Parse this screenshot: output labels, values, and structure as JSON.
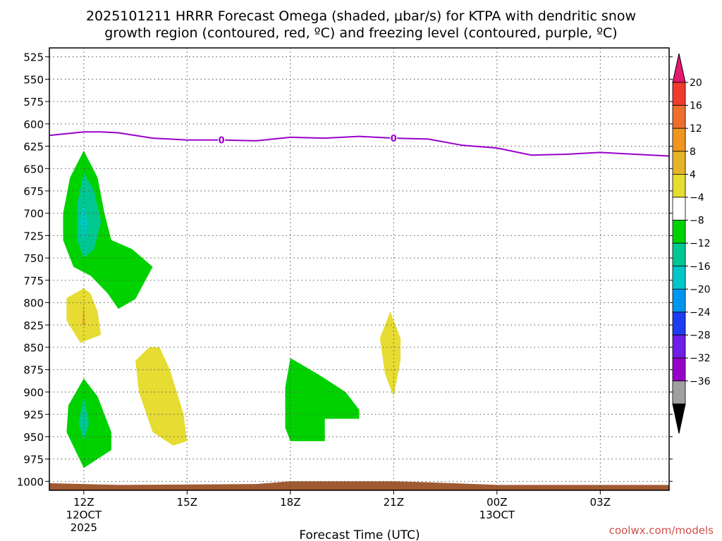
{
  "chart_data": {
    "type": "time-height cross-section",
    "title_line1": "2025101211 HRRR Forecast Omega (shaded, μbar/s) for KTPA with dendritic snow",
    "title_line2": "growth region (contoured, red, ºC) and freezing level (contoured, purple, ºC)",
    "xlabel": "Forecast Time (UTC)",
    "credit": "coolwx.com/models",
    "x_range_hours": [
      -1,
      17
    ],
    "y_range_hpa": [
      515,
      1010
    ],
    "y_ticks": [
      525,
      550,
      575,
      600,
      625,
      650,
      675,
      700,
      725,
      750,
      775,
      800,
      825,
      850,
      875,
      900,
      925,
      950,
      975,
      1000
    ],
    "x_ticks": [
      {
        "hour": 0,
        "lines": [
          "12Z",
          "12OCT",
          "2025"
        ]
      },
      {
        "hour": 3,
        "lines": [
          "15Z"
        ]
      },
      {
        "hour": 6,
        "lines": [
          "18Z"
        ]
      },
      {
        "hour": 9,
        "lines": [
          "21Z"
        ]
      },
      {
        "hour": 12,
        "lines": [
          "00Z",
          "13OCT"
        ]
      },
      {
        "hour": 15,
        "lines": [
          "03Z"
        ]
      }
    ],
    "freezing_level": {
      "label": "0",
      "color": "#9a00c8",
      "label_hours": [
        4,
        9
      ],
      "points": [
        [
          -1,
          613
        ],
        [
          0,
          609
        ],
        [
          0.5,
          609
        ],
        [
          1,
          610
        ],
        [
          2,
          616
        ],
        [
          3,
          618
        ],
        [
          4,
          618
        ],
        [
          5,
          619
        ],
        [
          6,
          615
        ],
        [
          7,
          616
        ],
        [
          8,
          614
        ],
        [
          9,
          616
        ],
        [
          10,
          617
        ],
        [
          11,
          624
        ],
        [
          12,
          627
        ],
        [
          13,
          635
        ],
        [
          14,
          634
        ],
        [
          15,
          632
        ],
        [
          16,
          634
        ],
        [
          17,
          636
        ]
      ]
    },
    "shaded_regions": [
      {
        "bin": "-8",
        "color": "#00d200",
        "points": [
          [
            0,
            630
          ],
          [
            -0.4,
            660
          ],
          [
            -0.6,
            700
          ],
          [
            -0.6,
            730
          ],
          [
            -0.3,
            760
          ],
          [
            0.2,
            770
          ],
          [
            0.7,
            790
          ],
          [
            1,
            807
          ],
          [
            1.5,
            796
          ],
          [
            2,
            760
          ],
          [
            1.4,
            740
          ],
          [
            0.8,
            730
          ],
          [
            0.6,
            700
          ],
          [
            0.4,
            660
          ]
        ]
      },
      {
        "bin": "-12",
        "color": "#00c890",
        "points": [
          [
            0,
            655
          ],
          [
            -0.2,
            690
          ],
          [
            -0.2,
            730
          ],
          [
            0,
            750
          ],
          [
            0.3,
            740
          ],
          [
            0.5,
            710
          ],
          [
            0.3,
            675
          ]
        ]
      },
      {
        "bin": "-16",
        "color": "#00c8c8",
        "points": [
          [
            0,
            688
          ],
          [
            -0.1,
            710
          ],
          [
            0,
            735
          ],
          [
            0.1,
            712
          ]
        ]
      },
      {
        "bin": "4",
        "color": "#e6dc32",
        "points": [
          [
            0,
            784
          ],
          [
            -0.5,
            795
          ],
          [
            -0.5,
            820
          ],
          [
            -0.1,
            845
          ],
          [
            0.5,
            836
          ],
          [
            0.4,
            810
          ],
          [
            0.2,
            790
          ]
        ]
      },
      {
        "bin": "8",
        "color": "#e6b428",
        "points": [
          [
            0,
            800
          ],
          [
            -0.05,
            825
          ],
          [
            0.05,
            825
          ]
        ]
      },
      {
        "bin": "-8",
        "color": "#00d200",
        "points": [
          [
            0,
            885
          ],
          [
            -0.45,
            915
          ],
          [
            -0.5,
            945
          ],
          [
            0,
            985
          ],
          [
            0.8,
            965
          ],
          [
            0.8,
            945
          ],
          [
            0.4,
            905
          ]
        ]
      },
      {
        "bin": "-12",
        "color": "#00c890",
        "points": [
          [
            0,
            905
          ],
          [
            -0.15,
            935
          ],
          [
            0,
            955
          ],
          [
            0.15,
            935
          ]
        ]
      },
      {
        "bin": "4",
        "color": "#e6dc32",
        "points": [
          [
            1.9,
            850
          ],
          [
            1.5,
            865
          ],
          [
            1.6,
            900
          ],
          [
            2.0,
            945
          ],
          [
            2.6,
            960
          ],
          [
            3.0,
            955
          ],
          [
            2.9,
            925
          ],
          [
            2.5,
            875
          ],
          [
            2.2,
            850
          ]
        ]
      },
      {
        "bin": "-8",
        "color": "#00d200",
        "points": [
          [
            6,
            862
          ],
          [
            5.85,
            895
          ],
          [
            5.85,
            940
          ],
          [
            6,
            955
          ],
          [
            7,
            955
          ],
          [
            7,
            930
          ],
          [
            8,
            930
          ],
          [
            8,
            920
          ],
          [
            7.6,
            900
          ],
          [
            6.8,
            880
          ]
        ]
      },
      {
        "bin": "4",
        "color": "#e6dc32",
        "points": [
          [
            8.9,
            810
          ],
          [
            8.6,
            840
          ],
          [
            8.75,
            880
          ],
          [
            9,
            905
          ],
          [
            9.2,
            865
          ],
          [
            9.2,
            840
          ]
        ]
      },
      {
        "bin": "terrain",
        "color": "#a05a32",
        "points": [
          [
            -1,
            1002
          ],
          [
            1,
            1004
          ],
          [
            5,
            1003
          ],
          [
            6,
            1000
          ],
          [
            8,
            1000
          ],
          [
            9,
            1000
          ],
          [
            10,
            1001
          ],
          [
            12,
            1004
          ],
          [
            17,
            1004
          ],
          [
            17,
            1010
          ],
          [
            -1,
            1010
          ]
        ]
      }
    ],
    "colorbar": {
      "units": "μbar/s",
      "labels": [
        "20",
        "16",
        "12",
        "8",
        "4",
        "−4",
        "−8",
        "−12",
        "−16",
        "−20",
        "−24",
        "−28",
        "−32",
        "−36"
      ],
      "top_arrow_color": "#e6196e",
      "bottom_arrow_color": "#000000",
      "segments": [
        "#f03c2d",
        "#f06e2d",
        "#f0961e",
        "#e6b428",
        "#e6dc32",
        "#ffffff",
        "#00d200",
        "#00c890",
        "#00c8c8",
        "#0096f0",
        "#1e3cf0",
        "#6e1ee6",
        "#9600c8",
        "#a0a0a0"
      ]
    }
  }
}
